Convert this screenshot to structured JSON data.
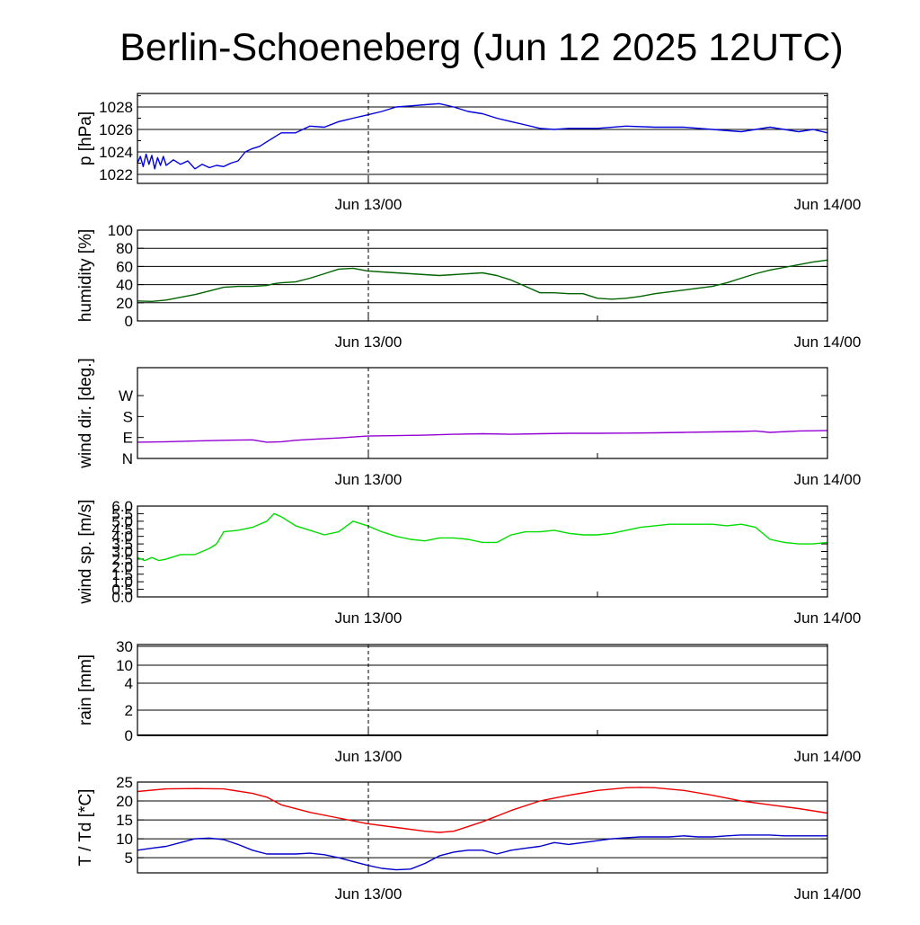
{
  "title": "Berlin-Schoeneberg (Jun 12 2025 12UTC)",
  "x_tick_labels": [
    "Jun 13/00",
    "Jun 14/00"
  ],
  "colors": {
    "pressure": "#0000dd",
    "humidity": "#006400",
    "wind_dir": "#9400d3",
    "wind_speed": "#00dd00",
    "temperature": "#ee0000",
    "dewpoint": "#0000cc",
    "grid": "#000000"
  },
  "chart_data": [
    {
      "type": "line",
      "ylabel": "p [hPa]",
      "ylim": [
        1021.2,
        1029.2
      ],
      "ytick_labels": [
        {
          "value": 1022,
          "label": "1022"
        },
        {
          "value": 1024,
          "label": "1024"
        },
        {
          "value": 1026,
          "label": "1026"
        },
        {
          "value": 1028,
          "label": "1028"
        }
      ],
      "grid": true,
      "x_unit": "hours from Jun 12 12UTC",
      "series": [
        {
          "color_key": "pressure",
          "x": [
            0,
            0.2,
            0.4,
            0.6,
            0.8,
            1,
            1.2,
            1.4,
            1.6,
            1.8,
            2,
            2.5,
            3,
            3.5,
            4,
            4.5,
            5,
            5.5,
            6,
            6.5,
            7,
            7.5,
            8,
            8.5,
            9,
            10,
            11,
            12,
            13,
            14,
            15,
            16,
            17,
            18,
            19,
            20,
            21,
            22,
            23,
            24,
            25,
            26,
            27,
            28,
            29,
            30,
            32,
            34,
            36,
            38,
            40,
            42,
            44,
            46,
            47,
            48
          ],
          "values": [
            1023.0,
            1023.6,
            1022.7,
            1023.8,
            1022.9,
            1023.7,
            1022.5,
            1023.5,
            1022.8,
            1023.6,
            1022.8,
            1023.3,
            1022.9,
            1023.2,
            1022.5,
            1022.9,
            1022.6,
            1022.8,
            1022.7,
            1023.0,
            1023.2,
            1024.0,
            1024.3,
            1024.5,
            1024.9,
            1025.7,
            1025.7,
            1026.3,
            1026.2,
            1026.7,
            1027.0,
            1027.3,
            1027.6,
            1028.0,
            1028.1,
            1028.2,
            1028.3,
            1028.0,
            1027.6,
            1027.4,
            1027.0,
            1026.7,
            1026.4,
            1026.1,
            1026.0,
            1026.1,
            1026.1,
            1026.3,
            1026.2,
            1026.2,
            1026.0,
            1025.8,
            1026.2,
            1025.8,
            1026.0,
            1025.7
          ]
        }
      ]
    },
    {
      "type": "line",
      "ylabel": "humidity [%]",
      "ylim": [
        0,
        100
      ],
      "ytick_labels": [
        {
          "value": 0,
          "label": "0"
        },
        {
          "value": 20,
          "label": "20"
        },
        {
          "value": 40,
          "label": "40"
        },
        {
          "value": 60,
          "label": "60"
        },
        {
          "value": 80,
          "label": "80"
        },
        {
          "value": 100,
          "label": "100"
        }
      ],
      "grid": true,
      "series": [
        {
          "color_key": "humidity",
          "x": [
            0,
            1,
            2,
            3,
            4,
            5,
            6,
            7,
            8,
            9,
            9.5,
            10,
            11,
            12,
            13,
            14,
            15,
            16,
            17,
            18,
            19,
            20,
            21,
            22,
            23,
            24,
            25,
            26,
            27,
            28,
            29,
            30,
            31,
            32,
            33,
            34,
            35,
            36,
            37,
            38,
            39,
            40,
            41,
            42,
            43,
            44,
            45,
            46,
            47,
            48
          ],
          "values": [
            22,
            21.5,
            23,
            26,
            29,
            33,
            37,
            38,
            38,
            39,
            41,
            42,
            43,
            47,
            52,
            57,
            58,
            55,
            54,
            53,
            52,
            51,
            50,
            51,
            52,
            53,
            50,
            45,
            38,
            31,
            31,
            30,
            30,
            25,
            24,
            25,
            27,
            30,
            32,
            34,
            36,
            38,
            42,
            47,
            52,
            56,
            59,
            62,
            65,
            67
          ]
        }
      ]
    },
    {
      "type": "line",
      "ylabel": "wind dir. [deg.]",
      "ylim": [
        0,
        390
      ],
      "ytick_labels": [
        {
          "value": 0,
          "label": "N"
        },
        {
          "value": 90,
          "label": "E"
        },
        {
          "value": 180,
          "label": "S"
        },
        {
          "value": 270,
          "label": "W"
        }
      ],
      "grid": false,
      "series": [
        {
          "color_key": "wind_dir",
          "x": [
            0,
            2,
            4,
            6,
            8,
            9,
            10,
            11,
            12,
            14,
            16,
            18,
            20,
            22,
            24,
            26,
            28,
            30,
            32,
            34,
            36,
            38,
            40,
            42,
            43,
            44,
            46,
            48
          ],
          "values": [
            70,
            72,
            75,
            78,
            80,
            70,
            72,
            78,
            82,
            88,
            96,
            98,
            100,
            104,
            106,
            104,
            106,
            108,
            108,
            109,
            110,
            112,
            114,
            116,
            118,
            112,
            118,
            120
          ]
        }
      ]
    },
    {
      "type": "line",
      "ylabel": "wind sp. [m/s]",
      "ylim": [
        0,
        6.0
      ],
      "ytick_labels": [
        {
          "value": 0,
          "label": "0.0"
        },
        {
          "value": 0.5,
          "label": "0.5"
        },
        {
          "value": 1.0,
          "label": "1.0"
        },
        {
          "value": 1.5,
          "label": "1.5"
        },
        {
          "value": 2.0,
          "label": "2.0"
        },
        {
          "value": 2.5,
          "label": "2.5"
        },
        {
          "value": 3.0,
          "label": "3.0"
        },
        {
          "value": 3.5,
          "label": "3.5"
        },
        {
          "value": 4.0,
          "label": "4.0"
        },
        {
          "value": 4.5,
          "label": "4.5"
        },
        {
          "value": 5.0,
          "label": "5.0"
        },
        {
          "value": 5.5,
          "label": "5.5"
        },
        {
          "value": 6.0,
          "label": "6.0"
        }
      ],
      "grid": false,
      "series": [
        {
          "color_key": "wind_speed",
          "x": [
            0,
            0.5,
            1,
            1.5,
            2,
            3,
            4,
            5,
            5.5,
            6,
            7,
            8,
            9,
            9.5,
            10,
            11,
            12,
            13,
            14,
            15,
            16,
            17,
            18,
            19,
            20,
            21,
            22,
            23,
            24,
            25,
            26,
            27,
            28,
            29,
            30,
            31,
            32,
            33,
            34,
            35,
            36,
            37,
            38,
            39,
            40,
            41,
            42,
            43,
            44,
            45,
            46,
            47,
            48
          ],
          "values": [
            2.6,
            2.4,
            2.6,
            2.4,
            2.5,
            2.8,
            2.8,
            3.2,
            3.5,
            4.3,
            4.4,
            4.6,
            5.0,
            5.5,
            5.3,
            4.7,
            4.4,
            4.1,
            4.3,
            5.0,
            4.7,
            4.3,
            4.0,
            3.8,
            3.7,
            3.9,
            3.9,
            3.8,
            3.6,
            3.6,
            4.1,
            4.3,
            4.3,
            4.4,
            4.2,
            4.1,
            4.1,
            4.2,
            4.4,
            4.6,
            4.7,
            4.8,
            4.8,
            4.8,
            4.8,
            4.7,
            4.8,
            4.6,
            3.8,
            3.6,
            3.5,
            3.5,
            3.6
          ]
        }
      ]
    },
    {
      "type": "line",
      "ylabel": "rain [mm]",
      "scale": "nonlinear",
      "ytick_labels": [
        {
          "value": 0,
          "label": "0"
        },
        {
          "value": 2,
          "label": "2"
        },
        {
          "value": 4,
          "label": "4"
        },
        {
          "value": 10,
          "label": "10"
        },
        {
          "value": 30,
          "label": "30"
        }
      ],
      "grid": true,
      "series": [
        {
          "color_key": "grid",
          "x": [
            0,
            48
          ],
          "values": [
            0,
            0
          ]
        }
      ]
    },
    {
      "type": "line",
      "ylabel": "T / Td [*C]",
      "ylim": [
        1,
        25
      ],
      "ytick_labels": [
        {
          "value": 5,
          "label": "5"
        },
        {
          "value": 10,
          "label": "10"
        },
        {
          "value": 15,
          "label": "15"
        },
        {
          "value": 20,
          "label": "20"
        },
        {
          "value": 25,
          "label": "25"
        }
      ],
      "grid": true,
      "series": [
        {
          "color_key": "temperature",
          "x": [
            0,
            2,
            4,
            6,
            8,
            9,
            10,
            12,
            14,
            16,
            18,
            20,
            21,
            22,
            24,
            26,
            28,
            30,
            32,
            34,
            35,
            36,
            38,
            40,
            42,
            44,
            46,
            48
          ],
          "values": [
            22.5,
            23.2,
            23.3,
            23.2,
            22.0,
            21.0,
            19.0,
            17.0,
            15.5,
            14.0,
            13.0,
            12.0,
            11.7,
            12.0,
            14.5,
            17.5,
            20.0,
            21.5,
            22.8,
            23.5,
            23.6,
            23.5,
            22.8,
            21.5,
            20.0,
            19.0,
            18.0,
            16.8
          ]
        },
        {
          "color_key": "dewpoint",
          "x": [
            0,
            1,
            2,
            3,
            4,
            5,
            6,
            7,
            8,
            9,
            10,
            11,
            12,
            13,
            14,
            15,
            16,
            17,
            18,
            19,
            20,
            21,
            22,
            23,
            24,
            25,
            26,
            27,
            28,
            29,
            30,
            31,
            32,
            33,
            34,
            35,
            36,
            37,
            38,
            39,
            40,
            41,
            42,
            43,
            44,
            45,
            46,
            47,
            48
          ],
          "values": [
            7.0,
            7.5,
            8.0,
            9.0,
            10.0,
            10.2,
            9.8,
            8.5,
            7.0,
            6.0,
            6.0,
            6.0,
            6.2,
            5.8,
            5.0,
            4.0,
            3.0,
            2.2,
            1.8,
            2.0,
            3.5,
            5.5,
            6.5,
            7.0,
            7.0,
            6.0,
            7.0,
            7.5,
            8.0,
            9.0,
            8.5,
            9.0,
            9.5,
            10.0,
            10.3,
            10.5,
            10.5,
            10.5,
            10.8,
            10.5,
            10.5,
            10.8,
            11.0,
            11.0,
            11.0,
            10.8,
            10.8,
            10.8,
            10.8
          ]
        }
      ]
    }
  ]
}
